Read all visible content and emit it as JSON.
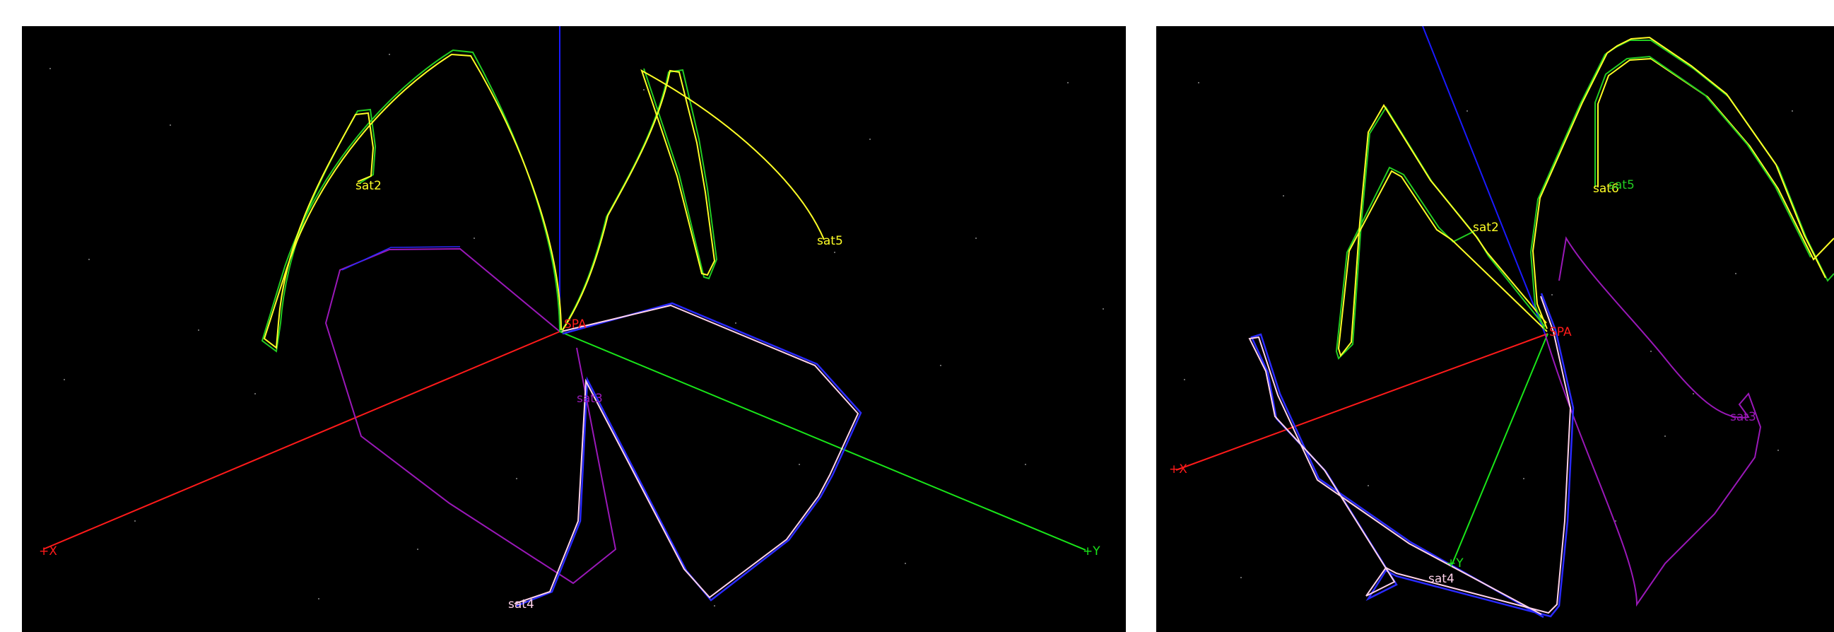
{
  "colors": {
    "x_axis": "#ff1a1a",
    "y_axis": "#19e619",
    "z_axis": "#1a1aff",
    "orbit_yellow": "#ffff26",
    "orbit_green": "#22cc22",
    "orbit_purple": "#9a18b8",
    "orbit_pink": "#ffd2ea",
    "orbit_blue": "#2a2aff",
    "label_white": "#ffffff",
    "background": "#000000"
  },
  "views": [
    {
      "id": "left",
      "labels": {
        "origin": "SPA",
        "x_axis": "+X",
        "y_axis": "+Y",
        "sat2": "sat2",
        "sat5": "sat5",
        "sat4": "sat4",
        "sat3": "sat3"
      }
    },
    {
      "id": "right",
      "labels": {
        "origin": "SPA",
        "x_axis": "+X",
        "y_axis": "+Y",
        "sat2": "sat2",
        "sat5": "sat5",
        "sat6": "sat6",
        "sat4": "sat4",
        "sat3": "sat3"
      }
    }
  ]
}
